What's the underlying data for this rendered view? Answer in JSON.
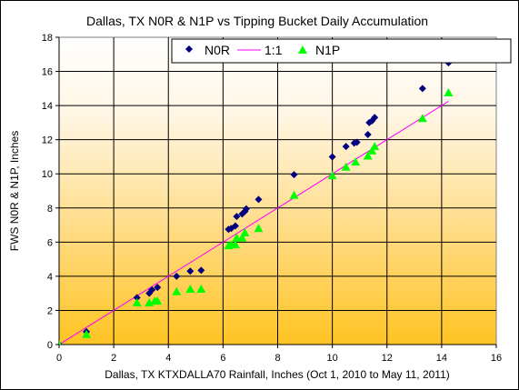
{
  "chart_data": {
    "type": "scatter",
    "title": "Dallas, TX N0R & N1P vs Tipping Bucket Daily Accumulation",
    "xlabel": "Dallas, TX KTXDALLA70 Rainfall, Inches (Oct 1, 2010 to May 11, 2011)",
    "ylabel": "FWS N0R & N1P, Inches",
    "xlim": [
      0,
      16
    ],
    "ylim": [
      0,
      18
    ],
    "xticks": [
      0,
      2,
      4,
      6,
      8,
      10,
      12,
      14,
      16
    ],
    "yticks": [
      0,
      2,
      4,
      6,
      8,
      10,
      12,
      14,
      16,
      18
    ],
    "grid": true,
    "legend_position": "top-center",
    "background": "gradient white (top) to orange-yellow (bottom)",
    "series": [
      {
        "name": "N0R",
        "marker": "diamond",
        "color": "#00007f",
        "points": [
          [
            0,
            0
          ],
          [
            1.0,
            0.75
          ],
          [
            2.85,
            2.75
          ],
          [
            3.3,
            3.0
          ],
          [
            3.4,
            3.2
          ],
          [
            3.6,
            3.35
          ],
          [
            4.3,
            4.0
          ],
          [
            4.8,
            4.3
          ],
          [
            5.2,
            4.35
          ],
          [
            6.2,
            6.75
          ],
          [
            6.3,
            6.8
          ],
          [
            6.45,
            6.95
          ],
          [
            6.5,
            7.5
          ],
          [
            6.7,
            7.65
          ],
          [
            6.8,
            7.8
          ],
          [
            6.85,
            7.95
          ],
          [
            7.3,
            8.5
          ],
          [
            8.6,
            9.95
          ],
          [
            10.0,
            11.0
          ],
          [
            10.5,
            11.6
          ],
          [
            10.8,
            11.8
          ],
          [
            10.9,
            11.85
          ],
          [
            11.3,
            12.3
          ],
          [
            11.35,
            13.0
          ],
          [
            11.45,
            13.1
          ],
          [
            11.55,
            13.3
          ],
          [
            13.3,
            15.0
          ],
          [
            14.25,
            16.5
          ]
        ]
      },
      {
        "name": "1:1",
        "type": "line",
        "color": "#ff00ff",
        "points": [
          [
            0,
            0
          ],
          [
            14.25,
            14.25
          ]
        ]
      },
      {
        "name": "N1P",
        "marker": "triangle",
        "color": "#00ff00",
        "points": [
          [
            0,
            0
          ],
          [
            1.0,
            0.6
          ],
          [
            2.85,
            2.45
          ],
          [
            3.3,
            2.45
          ],
          [
            3.5,
            2.55
          ],
          [
            3.6,
            2.55
          ],
          [
            4.3,
            3.1
          ],
          [
            4.8,
            3.25
          ],
          [
            5.2,
            3.25
          ],
          [
            6.2,
            5.8
          ],
          [
            6.3,
            5.85
          ],
          [
            6.45,
            5.85
          ],
          [
            6.5,
            6.25
          ],
          [
            6.7,
            6.25
          ],
          [
            6.8,
            6.55
          ],
          [
            7.3,
            6.8
          ],
          [
            8.6,
            8.75
          ],
          [
            10.0,
            9.9
          ],
          [
            10.5,
            10.4
          ],
          [
            10.85,
            10.7
          ],
          [
            11.3,
            11.05
          ],
          [
            11.45,
            11.35
          ],
          [
            11.55,
            11.6
          ],
          [
            13.3,
            13.25
          ],
          [
            14.25,
            14.75
          ]
        ]
      }
    ]
  }
}
